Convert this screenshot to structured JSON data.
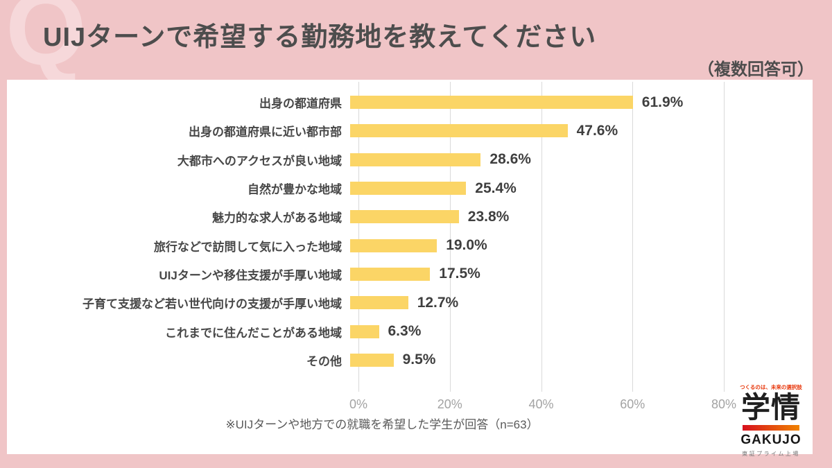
{
  "header": {
    "q_mark": "Q",
    "title": "UIJターンで希望する勤務地を教えてください",
    "note": "（複数回答可）"
  },
  "chart_data": {
    "type": "bar",
    "orientation": "horizontal",
    "title": "UIJターンで希望する勤務地を教えてください",
    "categories": [
      "出身の都道府県",
      "出身の都道府県に近い都市部",
      "大都市へのアクセスが良い地域",
      "自然が豊かな地域",
      "魅力的な求人がある地域",
      "旅行などで訪問して気に入った地域",
      "UIJターンや移住支援が手厚い地域",
      "子育て支援など若い世代向けの支援が手厚い地域",
      "これまでに住んだことがある地域",
      "その他"
    ],
    "values": [
      61.9,
      47.6,
      28.6,
      25.4,
      23.8,
      19.0,
      17.5,
      12.7,
      6.3,
      9.5
    ],
    "value_labels": [
      "61.9%",
      "47.6%",
      "28.6%",
      "25.4%",
      "23.8%",
      "19.0%",
      "17.5%",
      "12.7%",
      "6.3%",
      "9.5%"
    ],
    "xlim": [
      0,
      80
    ],
    "x_ticks": [
      {
        "value": 0,
        "label": "0%"
      },
      {
        "value": 20,
        "label": "20%"
      },
      {
        "value": 40,
        "label": "40%"
      },
      {
        "value": 60,
        "label": "60%"
      },
      {
        "value": 80,
        "label": "80%"
      }
    ],
    "grid": true,
    "legend": false,
    "footnote": "※UIJターンや地方での就職を希望した学生が回答（n=63）"
  },
  "logo": {
    "tagline": "つくるのは、未来の選択肢",
    "name_jp": "学情",
    "name_en": "GAKUJO",
    "listing": "東証プライム上場"
  },
  "colors": {
    "frame_pink": "#F0C5C7",
    "q_pink": "#F6D8DA",
    "title_gray": "#4D4D4D",
    "label_gray": "#474747",
    "value_gray": "#3F3F3F",
    "axis_tick_gray": "#A3A3A3",
    "gridline_gray": "#D9D9D9",
    "bar_yellow": "#FBD566",
    "footnote_gray": "#595959",
    "logo_red": "#E8380D",
    "logo_gradient_left": "#D7101E",
    "logo_gradient_right": "#F08300"
  }
}
